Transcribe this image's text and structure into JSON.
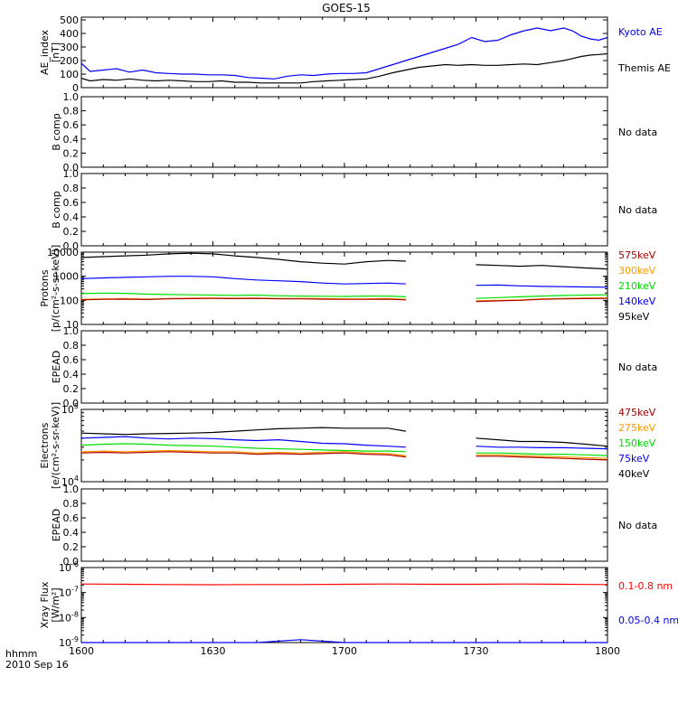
{
  "title": "GOES-15",
  "time_axis": {
    "row1_label": "hhmm",
    "row2_label": "2010 Sep 16",
    "ticks": [
      "1600",
      "1630",
      "1700",
      "1730",
      "1800"
    ]
  },
  "chart_data": [
    {
      "type": "line",
      "ylabel": [
        "AE_index",
        "[nT]"
      ],
      "yticks": [
        "0",
        "100",
        "200",
        "300",
        "400",
        "500"
      ],
      "ylim": [
        0,
        520
      ],
      "x": [
        1600,
        1602,
        1605,
        1608,
        1611,
        1614,
        1617,
        1620,
        1623,
        1626,
        1629,
        1632,
        1635,
        1638,
        1641,
        1644,
        1647,
        1650,
        1653,
        1656,
        1659,
        1702,
        1705,
        1708,
        1711,
        1714,
        1717,
        1720,
        1723,
        1726,
        1729,
        1732,
        1735,
        1738,
        1741,
        1744,
        1747,
        1750,
        1752,
        1754,
        1756,
        1758,
        1800
      ],
      "series": [
        {
          "name": "Kyoto AE",
          "color": "#0000ff",
          "values": [
            180,
            120,
            130,
            140,
            115,
            130,
            110,
            105,
            100,
            100,
            95,
            95,
            90,
            75,
            70,
            65,
            85,
            95,
            90,
            100,
            105,
            105,
            110,
            140,
            170,
            200,
            230,
            260,
            290,
            320,
            370,
            340,
            350,
            390,
            420,
            440,
            420,
            440,
            420,
            380,
            360,
            350,
            370
          ]
        },
        {
          "name": "Themis AE",
          "color": "#000000",
          "values": [
            70,
            50,
            60,
            55,
            65,
            55,
            50,
            55,
            50,
            45,
            45,
            50,
            40,
            40,
            35,
            35,
            35,
            35,
            45,
            50,
            55,
            60,
            65,
            85,
            110,
            130,
            150,
            160,
            170,
            165,
            170,
            165,
            165,
            170,
            175,
            170,
            185,
            200,
            215,
            230,
            240,
            245,
            250
          ]
        }
      ]
    },
    {
      "type": "line",
      "ylabel": [
        "B comp"
      ],
      "yticks": [
        "0.0",
        "0.2",
        "0.4",
        "0.6",
        "0.8",
        "1.0"
      ],
      "ylim": [
        0,
        1
      ],
      "note": "No data",
      "series": []
    },
    {
      "type": "line",
      "ylabel": [
        "B comp"
      ],
      "yticks": [
        "0.0",
        "0.2",
        "0.4",
        "0.6",
        "0.8",
        "1.0"
      ],
      "ylim": [
        0,
        1
      ],
      "note": "No data",
      "series": []
    },
    {
      "type": "line",
      "ylabel": [
        "Protons",
        "[p/(cm²-s-sr-keV)]"
      ],
      "yscale": "log",
      "yticks": [
        "10",
        "100",
        "1000",
        "10000"
      ],
      "ylim": [
        10,
        10000
      ],
      "x": [
        1600,
        1605,
        1610,
        1615,
        1620,
        1625,
        1630,
        1635,
        1640,
        1645,
        1650,
        1655,
        1700,
        1705,
        1710,
        1714
      ],
      "x2": [
        1730,
        1735,
        1740,
        1745,
        1750,
        1755,
        1800
      ],
      "series": [
        {
          "name": "575keV",
          "color": "#aa0000",
          "values": [
            105,
            110,
            112,
            108,
            115,
            118,
            120,
            118,
            120,
            115,
            115,
            112,
            110,
            110,
            112,
            105
          ],
          "values2": [
            90,
            95,
            100,
            110,
            115,
            118,
            120
          ]
        },
        {
          "name": "300keV",
          "color": "#ff9900",
          "values": [
            110,
            115,
            118,
            112,
            120,
            122,
            125,
            122,
            125,
            120,
            120,
            118,
            115,
            115,
            118,
            110
          ],
          "values2": [
            95,
            100,
            105,
            115,
            120,
            125,
            125
          ]
        },
        {
          "name": "210keV",
          "color": "#00dd00",
          "values": [
            190,
            200,
            195,
            180,
            175,
            170,
            165,
            160,
            165,
            155,
            150,
            148,
            145,
            150,
            150,
            140
          ],
          "values2": [
            120,
            130,
            140,
            150,
            160,
            165,
            170
          ]
        },
        {
          "name": "140keV",
          "color": "#0000ff",
          "values": [
            800,
            850,
            900,
            950,
            1000,
            1000,
            950,
            800,
            700,
            650,
            600,
            520,
            480,
            500,
            520,
            480
          ],
          "values2": [
            420,
            430,
            400,
            380,
            370,
            360,
            350
          ]
        },
        {
          "name": "95keV",
          "color": "#000000",
          "values": [
            6000,
            6500,
            7000,
            7500,
            8500,
            9000,
            8500,
            7000,
            6000,
            5000,
            4000,
            3500,
            3200,
            4000,
            4500,
            4200
          ],
          "values2": [
            3000,
            2800,
            2600,
            2800,
            2500,
            2200,
            2000
          ]
        }
      ]
    },
    {
      "type": "line",
      "ylabel": [
        "EPEAD"
      ],
      "yticks": [
        "0.0",
        "0.2",
        "0.4",
        "0.6",
        "0.8",
        "1.0"
      ],
      "ylim": [
        0,
        1
      ],
      "note": "No data",
      "series": []
    },
    {
      "type": "line",
      "ylabel": [
        "Electrons",
        "[e/(cm²-s-sr-keV)]"
      ],
      "yscale": "log",
      "ytick_labels": [
        {
          "base": "10",
          "exp": "4"
        },
        {
          "base": "10",
          "exp": "5"
        }
      ],
      "ylim": [
        10000,
        100000
      ],
      "x": [
        1600,
        1605,
        1610,
        1615,
        1620,
        1625,
        1630,
        1635,
        1640,
        1645,
        1650,
        1655,
        1700,
        1705,
        1710,
        1714
      ],
      "x2": [
        1730,
        1735,
        1740,
        1745,
        1750,
        1755,
        1800
      ],
      "series": [
        {
          "name": "475keV",
          "color": "#aa0000",
          "values": [
            25000,
            25500,
            25000,
            25500,
            26000,
            25500,
            25000,
            25000,
            24000,
            24500,
            24000,
            24500,
            25000,
            24000,
            23500,
            22000
          ],
          "values2": [
            22500,
            22500,
            22000,
            21500,
            21000,
            20500,
            20000
          ]
        },
        {
          "name": "275keV",
          "color": "#ff9900",
          "values": [
            26000,
            26500,
            26000,
            26500,
            27000,
            26500,
            26000,
            26000,
            25000,
            25500,
            25000,
            25500,
            26000,
            25000,
            24500,
            23000
          ],
          "values2": [
            23500,
            23500,
            23000,
            22500,
            22000,
            21500,
            21000
          ]
        },
        {
          "name": "150keV",
          "color": "#00dd00",
          "values": [
            32000,
            33000,
            33500,
            33000,
            32000,
            31500,
            31000,
            30000,
            29000,
            28500,
            28000,
            27500,
            27000,
            26500,
            26500,
            26000
          ],
          "values2": [
            25000,
            25000,
            24500,
            24000,
            24000,
            23500,
            23000
          ]
        },
        {
          "name": "75keV",
          "color": "#0000ff",
          "values": [
            40000,
            41000,
            42000,
            40000,
            39000,
            40000,
            39500,
            38000,
            37000,
            38000,
            36000,
            34000,
            33500,
            32000,
            31000,
            30000
          ],
          "values2": [
            31000,
            30000,
            30000,
            29500,
            29500,
            29000,
            28500
          ]
        },
        {
          "name": "40keV",
          "color": "#000000",
          "values": [
            47000,
            46000,
            45000,
            46000,
            46500,
            47000,
            48000,
            50000,
            52000,
            54000,
            55000,
            56000,
            55000,
            55000,
            55000,
            50000
          ],
          "values2": [
            40000,
            38000,
            36000,
            36000,
            35000,
            33000,
            31000
          ]
        }
      ]
    },
    {
      "type": "line",
      "ylabel": [
        "EPEAD"
      ],
      "yticks": [
        "0.0",
        "0.2",
        "0.4",
        "0.6",
        "0.8",
        "1.0"
      ],
      "ylim": [
        0,
        1
      ],
      "note": "No data",
      "series": []
    },
    {
      "type": "line",
      "ylabel": [
        "Xray Flux",
        "[W/m²]"
      ],
      "yscale": "log",
      "ytick_labels": [
        {
          "base": "10",
          "exp": "-9"
        },
        {
          "base": "10",
          "exp": "-8"
        },
        {
          "base": "10",
          "exp": "-7"
        },
        {
          "base": "10",
          "exp": "-6"
        }
      ],
      "ylim": [
        1e-09,
        1e-06
      ],
      "x": [
        1600,
        1610,
        1620,
        1630,
        1640,
        1650,
        1700,
        1710,
        1720,
        1730,
        1740,
        1750,
        1800
      ],
      "series": [
        {
          "name": "0.1-0.8 nm",
          "color": "#ff0000",
          "values": [
            2.2e-07,
            2.15e-07,
            2.1e-07,
            2.05e-07,
            2.1e-07,
            2.1e-07,
            2.15e-07,
            2.2e-07,
            2.15e-07,
            2.15e-07,
            2.2e-07,
            2.15e-07,
            2.1e-07
          ]
        },
        {
          "name": "0.05-0.4 nm",
          "color": "#0000ff",
          "values": [
            1e-09,
            1e-09,
            1e-09,
            1e-09,
            1e-09,
            1.3e-09,
            1e-09,
            1e-09,
            1e-09,
            1e-09,
            1e-09,
            1e-09,
            1e-09
          ]
        }
      ]
    }
  ]
}
